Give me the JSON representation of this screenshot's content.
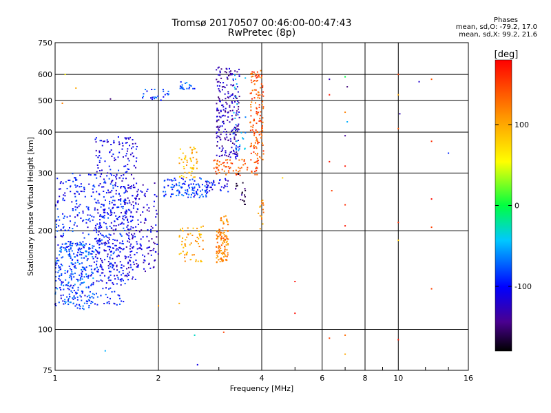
{
  "header": {
    "title_line1": "Tromsø 20170507 00:46:00-00:47:43",
    "title_line2": "RwPretec (8p)"
  },
  "stats": {
    "heading": "Phases",
    "line1": "mean, sd,O: -79.2, 17.0",
    "line2": "mean, sd,X:  99.2, 21.6"
  },
  "colorbar": {
    "label": "[deg]",
    "ticks": [
      "100",
      "0",
      "-100"
    ],
    "tick_values": [
      100,
      0,
      -100
    ],
    "range": [
      -180,
      180
    ]
  },
  "chart_data": {
    "type": "scatter",
    "xlabel": "Frequency [MHz]",
    "ylabel": "Stationary phase Virtual Height [km]",
    "x_scale": "log",
    "y_scale": "log",
    "xlim": [
      1,
      16
    ],
    "ylim": [
      75,
      750
    ],
    "x_ticks": [
      1,
      2,
      4,
      6,
      8,
      10,
      16
    ],
    "x_tick_labels": [
      "1",
      "2",
      "4",
      "6",
      "8",
      "10",
      "16"
    ],
    "y_ticks": [
      75,
      100,
      200,
      300,
      400,
      500,
      600,
      750
    ],
    "y_tick_labels": [
      "75",
      "100",
      "200",
      "300",
      "400",
      "500",
      "600",
      "750"
    ],
    "grid": true,
    "clusters": [
      {
        "x_range": [
          1.0,
          1.6
        ],
        "y_range": [
          118,
          300
        ],
        "phase": -95,
        "count": 500
      },
      {
        "x_range": [
          1.3,
          1.75
        ],
        "y_range": [
          140,
          390
        ],
        "phase": -110,
        "count": 320
      },
      {
        "x_range": [
          1.0,
          1.3
        ],
        "y_range": [
          115,
          185
        ],
        "phase": -75,
        "count": 180
      },
      {
        "x_range": [
          1.6,
          2.0
        ],
        "y_range": [
          150,
          280
        ],
        "phase": -120,
        "count": 140
      },
      {
        "x_range": [
          1.75,
          2.15
        ],
        "y_range": [
          500,
          540
        ],
        "phase": -85,
        "count": 25
      },
      {
        "x_range": [
          2.05,
          2.8
        ],
        "y_range": [
          252,
          290
        ],
        "phase": -85,
        "count": 110
      },
      {
        "x_range": [
          2.3,
          2.55
        ],
        "y_range": [
          540,
          570
        ],
        "phase": -75,
        "count": 20
      },
      {
        "x_range": [
          2.3,
          2.6
        ],
        "y_range": [
          290,
          360
        ],
        "phase": 90,
        "count": 50
      },
      {
        "x_range": [
          2.3,
          2.7
        ],
        "y_range": [
          160,
          210
        ],
        "phase": 100,
        "count": 60
      },
      {
        "x_range": [
          2.95,
          3.2
        ],
        "y_range": [
          160,
          200
        ],
        "phase": 120,
        "count": 100
      },
      {
        "x_range": [
          3.0,
          3.2
        ],
        "y_range": [
          200,
          225
        ],
        "phase": 115,
        "count": 20
      },
      {
        "x_range": [
          2.95,
          3.45
        ],
        "y_range": [
          330,
          640
        ],
        "phase": -130,
        "count": 220
      },
      {
        "x_range": [
          2.75,
          3.2
        ],
        "y_range": [
          260,
          290
        ],
        "phase": -110,
        "count": 35
      },
      {
        "x_range": [
          2.9,
          3.9
        ],
        "y_range": [
          295,
          330
        ],
        "phase": 140,
        "count": 70
      },
      {
        "x_range": [
          3.7,
          4.05
        ],
        "y_range": [
          320,
          620
        ],
        "phase": 140,
        "count": 140
      },
      {
        "x_range": [
          3.3,
          3.6
        ],
        "y_range": [
          350,
          600
        ],
        "phase": -60,
        "count": 30
      },
      {
        "x_range": [
          3.3,
          3.6
        ],
        "y_range": [
          240,
          300
        ],
        "phase": -150,
        "count": 20
      },
      {
        "x_range": [
          3.9,
          4.05
        ],
        "y_range": [
          200,
          250
        ],
        "phase": 110,
        "count": 15
      }
    ],
    "isolated_points": [
      {
        "x": 6.3,
        "y": 580,
        "phase": -130
      },
      {
        "x": 7.0,
        "y": 590,
        "phase": 0
      },
      {
        "x": 7.1,
        "y": 550,
        "phase": -150
      },
      {
        "x": 6.3,
        "y": 520,
        "phase": 170
      },
      {
        "x": 7.0,
        "y": 460,
        "phase": 120
      },
      {
        "x": 7.1,
        "y": 430,
        "phase": -50
      },
      {
        "x": 7.0,
        "y": 390,
        "phase": -140
      },
      {
        "x": 6.3,
        "y": 325,
        "phase": 170
      },
      {
        "x": 7.0,
        "y": 315,
        "phase": 170
      },
      {
        "x": 6.4,
        "y": 265,
        "phase": 150
      },
      {
        "x": 7.0,
        "y": 240,
        "phase": 160
      },
      {
        "x": 7.0,
        "y": 207,
        "phase": 170
      },
      {
        "x": 10.0,
        "y": 600,
        "phase": 150
      },
      {
        "x": 10.0,
        "y": 520,
        "phase": 100
      },
      {
        "x": 10.1,
        "y": 455,
        "phase": -130
      },
      {
        "x": 10.0,
        "y": 410,
        "phase": 140
      },
      {
        "x": 10.0,
        "y": 212,
        "phase": 160
      },
      {
        "x": 10.0,
        "y": 187,
        "phase": 80
      },
      {
        "x": 12.5,
        "y": 580,
        "phase": 140
      },
      {
        "x": 12.5,
        "y": 375,
        "phase": 160
      },
      {
        "x": 12.5,
        "y": 250,
        "phase": 175
      },
      {
        "x": 12.5,
        "y": 205,
        "phase": 150
      },
      {
        "x": 12.5,
        "y": 133,
        "phase": 150
      },
      {
        "x": 11.5,
        "y": 570,
        "phase": -120
      },
      {
        "x": 14.0,
        "y": 345,
        "phase": -90
      },
      {
        "x": 5.0,
        "y": 140,
        "phase": 175
      },
      {
        "x": 5.0,
        "y": 112,
        "phase": 175
      },
      {
        "x": 6.3,
        "y": 94,
        "phase": 150
      },
      {
        "x": 7.0,
        "y": 96,
        "phase": 130
      },
      {
        "x": 7.0,
        "y": 84,
        "phase": 100
      },
      {
        "x": 10.0,
        "y": 93,
        "phase": 170
      },
      {
        "x": 4.6,
        "y": 290,
        "phase": 80
      },
      {
        "x": 1.15,
        "y": 545,
        "phase": 100
      },
      {
        "x": 1.05,
        "y": 490,
        "phase": 120
      },
      {
        "x": 1.45,
        "y": 505,
        "phase": -150
      },
      {
        "x": 1.07,
        "y": 600,
        "phase": 60
      },
      {
        "x": 1.4,
        "y": 86,
        "phase": -50
      },
      {
        "x": 2.6,
        "y": 78,
        "phase": -110
      },
      {
        "x": 2.55,
        "y": 96,
        "phase": -30
      },
      {
        "x": 3.1,
        "y": 98,
        "phase": 150
      },
      {
        "x": 2.0,
        "y": 118,
        "phase": 110
      },
      {
        "x": 2.3,
        "y": 120,
        "phase": 100
      }
    ]
  }
}
